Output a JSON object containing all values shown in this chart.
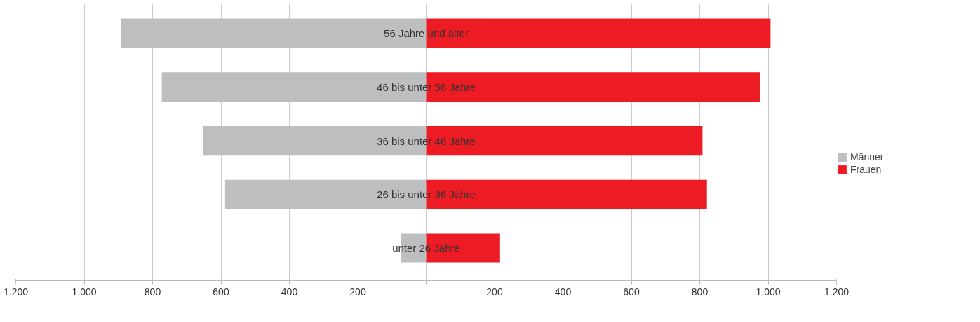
{
  "chart_data": {
    "type": "bar",
    "orientation": "horizontal",
    "categories": [
      "56 Jahre und älter",
      "46 bis unter 56 Jahre",
      "36 bis unter 46 Jahre",
      "26 bis unter 36 Jahre",
      "unter 26 Jahre"
    ],
    "series": [
      {
        "name": "Männer",
        "color": "#bcbec0",
        "values": [
          -893,
          -773,
          -652,
          -588,
          -74
        ]
      },
      {
        "name": "Frauen",
        "color": "#ed1c24",
        "values": [
          1007,
          976,
          808,
          821,
          216
        ]
      }
    ],
    "xlim": [
      -1200,
      1200
    ],
    "xticks": [
      {
        "value": -1200,
        "label": "1.200"
      },
      {
        "value": -1000,
        "label": "1.000"
      },
      {
        "value": -800,
        "label": "800"
      },
      {
        "value": -600,
        "label": "600"
      },
      {
        "value": -400,
        "label": "400"
      },
      {
        "value": -200,
        "label": "200"
      },
      {
        "value": 0,
        "label": null
      },
      {
        "value": 200,
        "label": "200"
      },
      {
        "value": 400,
        "label": "400"
      },
      {
        "value": 600,
        "label": "600"
      },
      {
        "value": 800,
        "label": "800"
      },
      {
        "value": 1000,
        "label": "1.000"
      },
      {
        "value": 1200,
        "label": "1.200"
      }
    ],
    "grid": "x",
    "legend": "right",
    "stacked": true
  }
}
